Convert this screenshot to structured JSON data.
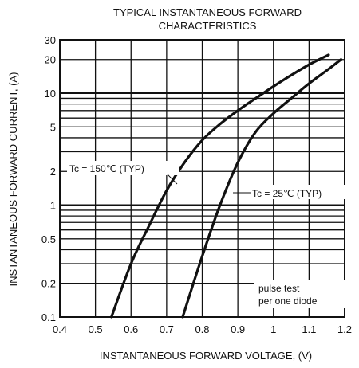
{
  "chart_data": {
    "type": "line",
    "title_lines": [
      "TYPICAL INSTANTANEOUS FORWARD",
      "CHARACTERISTICS"
    ],
    "xlabel": "INSTANTANEOUS FORWARD VOLTAGE, (V)",
    "ylabel": "INSTANTANEOUS FORWARD CURRENT, (A)",
    "x_scale": "linear",
    "y_scale": "log",
    "xlim": [
      0.4,
      1.2
    ],
    "ylim": [
      0.1,
      30
    ],
    "x_ticks": [
      {
        "value": 0.4,
        "label": "0.4"
      },
      {
        "value": 0.5,
        "label": "0.5"
      },
      {
        "value": 0.6,
        "label": "0.6"
      },
      {
        "value": 0.7,
        "label": "0.7"
      },
      {
        "value": 0.8,
        "label": "0.8"
      },
      {
        "value": 0.9,
        "label": "0.9"
      },
      {
        "value": 1.0,
        "label": "1"
      },
      {
        "value": 1.1,
        "label": "1.1"
      },
      {
        "value": 1.2,
        "label": "1.2"
      }
    ],
    "y_ticks": [
      {
        "value": 0.1,
        "label": "0.1"
      },
      {
        "value": 0.2,
        "label": "0.2"
      },
      {
        "value": 0.5,
        "label": "0.5"
      },
      {
        "value": 1,
        "label": "1"
      },
      {
        "value": 2,
        "label": "2"
      },
      {
        "value": 5,
        "label": "5"
      },
      {
        "value": 10,
        "label": "10"
      },
      {
        "value": 20,
        "label": "20"
      },
      {
        "value": 30,
        "label": "30"
      }
    ],
    "grid": true,
    "series": [
      {
        "name": "Tc = 150℃ (TYP)",
        "points": [
          [
            0.545,
            0.1
          ],
          [
            0.6,
            0.3
          ],
          [
            0.65,
            0.65
          ],
          [
            0.7,
            1.35
          ],
          [
            0.75,
            2.4
          ],
          [
            0.8,
            3.8
          ],
          [
            0.85,
            5.3
          ],
          [
            0.9,
            7.0
          ],
          [
            0.95,
            9.0
          ],
          [
            1.0,
            11.5
          ],
          [
            1.05,
            14.5
          ],
          [
            1.1,
            18.0
          ],
          [
            1.155,
            22.0
          ]
        ]
      },
      {
        "name": "Tc = 25℃ (TYP)",
        "points": [
          [
            0.745,
            0.1
          ],
          [
            0.8,
            0.35
          ],
          [
            0.85,
            1.0
          ],
          [
            0.9,
            2.4
          ],
          [
            0.95,
            4.5
          ],
          [
            1.0,
            6.6
          ],
          [
            1.05,
            9.0
          ],
          [
            1.1,
            12.2
          ],
          [
            1.15,
            16.0
          ],
          [
            1.19,
            20.0
          ]
        ]
      }
    ],
    "annotations": [
      {
        "text": "Tc = 150℃ (TYP)",
        "points_to": "Tc = 150℃ (TYP)"
      },
      {
        "text": "Tc = 25℃ (TYP)",
        "points_to": "Tc = 25℃ (TYP)"
      },
      {
        "text_lines": [
          "pulse test",
          "per one diode"
        ]
      }
    ],
    "colors": {
      "line": "#111111",
      "grid": "#111111",
      "background": "#ffffff"
    }
  }
}
